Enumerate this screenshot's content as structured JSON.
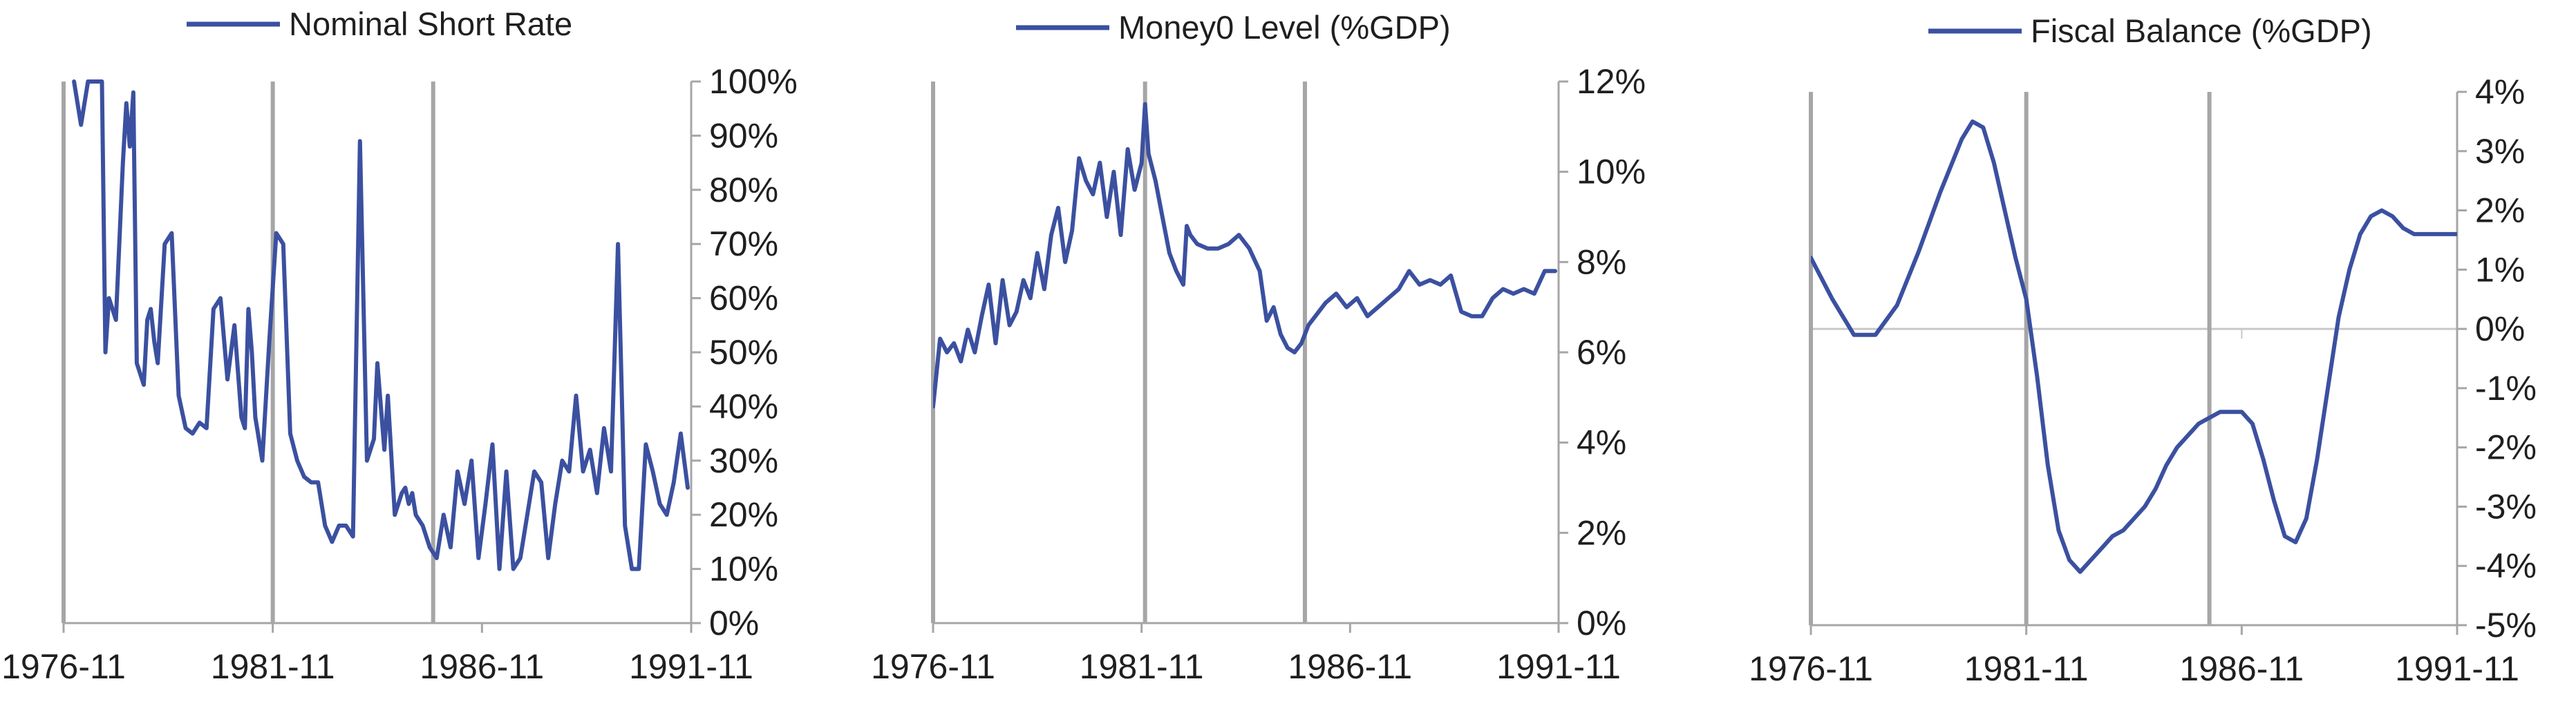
{
  "colors": {
    "series": "#3b50a0",
    "axis": "#a6a6a6",
    "marker": "#a6a6a6",
    "grid": "#c8c8c8"
  },
  "chart_data": [
    {
      "type": "line",
      "xlim": [
        "1976-11",
        "1991-11"
      ],
      "x_tick_labels": [
        "1976-11",
        "1981-11",
        "1986-11",
        "1991-11"
      ],
      "ylim": [
        0,
        100
      ],
      "y_tick_labels": [
        "100%",
        "90%",
        "80%",
        "70%",
        "60%",
        "50%",
        "40%",
        "30%",
        "20%",
        "10%",
        "0%"
      ],
      "y_axis_side": "right",
      "legend": "top",
      "grid": false,
      "markers": [
        "1981-11",
        "1985-09"
      ],
      "series": [
        {
          "name": "Nominal Short Rate",
          "x": [
            "1977-02",
            "1977-04",
            "1977-06",
            "1977-08",
            "1977-10",
            "1977-11",
            "1977-12",
            "1978-02",
            "1978-04",
            "1978-05",
            "1978-06",
            "1978-07",
            "1978-08",
            "1978-10",
            "1978-11",
            "1978-12",
            "1979-01",
            "1979-02",
            "1979-04",
            "1979-06",
            "1979-08",
            "1979-10",
            "1979-12",
            "1980-02",
            "1980-04",
            "1980-06",
            "1980-08",
            "1980-10",
            "1980-12",
            "1981-02",
            "1981-03",
            "1981-04",
            "1981-05",
            "1981-06",
            "1981-07",
            "1981-08",
            "1981-10",
            "1981-12",
            "1982-02",
            "1982-04",
            "1982-06",
            "1982-08",
            "1982-10",
            "1982-12",
            "1983-02",
            "1983-04",
            "1983-06",
            "1983-08",
            "1983-10",
            "1983-12",
            "1984-02",
            "1984-04",
            "1984-05",
            "1984-06",
            "1984-07",
            "1984-08",
            "1984-10",
            "1984-12",
            "1985-01",
            "1985-02",
            "1985-03",
            "1985-04",
            "1985-06",
            "1985-08",
            "1985-10",
            "1985-12",
            "1986-02",
            "1986-04",
            "1986-06",
            "1986-08",
            "1986-10",
            "1986-12",
            "1987-02",
            "1987-04",
            "1987-06",
            "1987-08",
            "1987-10",
            "1987-12",
            "1988-02",
            "1988-04",
            "1988-06",
            "1988-08",
            "1988-10",
            "1988-12",
            "1989-02",
            "1989-04",
            "1989-06",
            "1989-08",
            "1989-10",
            "1989-12",
            "1990-02",
            "1990-03",
            "1990-04",
            "1990-06",
            "1990-08",
            "1990-10",
            "1990-12",
            "1991-02",
            "1991-04",
            "1991-06",
            "1991-08",
            "1991-10"
          ],
          "values": [
            100,
            92,
            100,
            100,
            100,
            50,
            60,
            56,
            85,
            96,
            88,
            98,
            48,
            44,
            56,
            58,
            52,
            48,
            70,
            72,
            42,
            36,
            35,
            37,
            36,
            58,
            60,
            45,
            55,
            38,
            36,
            58,
            50,
            38,
            34,
            30,
            52,
            72,
            70,
            35,
            30,
            27,
            26,
            26,
            18,
            15,
            18,
            18,
            16,
            89,
            30,
            34,
            48,
            40,
            32,
            42,
            20,
            24,
            25,
            22,
            24,
            20,
            18,
            14,
            12,
            20,
            14,
            28,
            22,
            30,
            12,
            22,
            33,
            10,
            28,
            10,
            12,
            20,
            28,
            26,
            12,
            22,
            30,
            28,
            42,
            28,
            32,
            24,
            36,
            28,
            70,
            45,
            18,
            10,
            10,
            33,
            28,
            22,
            20,
            26,
            35,
            25
          ]
        }
      ]
    },
    {
      "type": "line",
      "xlim": [
        "1976-11",
        "1991-11"
      ],
      "x_tick_labels": [
        "1976-11",
        "1981-11",
        "1986-11",
        "1991-11"
      ],
      "ylim": [
        0,
        12
      ],
      "y_tick_labels": [
        "12%",
        "10%",
        "8%",
        "6%",
        "4%",
        "2%",
        "0%"
      ],
      "y_axis_side": "right",
      "legend": "top",
      "grid": false,
      "markers": [
        "1981-12",
        "1985-10"
      ],
      "series": [
        {
          "name": "Money0 Level (%GDP)",
          "x": [
            "1976-11",
            "1977-01",
            "1977-03",
            "1977-05",
            "1977-07",
            "1977-09",
            "1977-11",
            "1978-01",
            "1978-03",
            "1978-05",
            "1978-07",
            "1978-09",
            "1978-11",
            "1979-01",
            "1979-03",
            "1979-05",
            "1979-07",
            "1979-09",
            "1979-11",
            "1980-01",
            "1980-03",
            "1980-05",
            "1980-07",
            "1980-09",
            "1980-11",
            "1981-01",
            "1981-03",
            "1981-05",
            "1981-07",
            "1981-09",
            "1981-11",
            "1981-12",
            "1982-01",
            "1982-03",
            "1982-05",
            "1982-07",
            "1982-09",
            "1982-11",
            "1982-12",
            "1983-01",
            "1983-03",
            "1983-06",
            "1983-09",
            "1983-12",
            "1984-03",
            "1984-06",
            "1984-09",
            "1984-11",
            "1985-01",
            "1985-03",
            "1985-05",
            "1985-07",
            "1985-09",
            "1985-11",
            "1986-01",
            "1986-04",
            "1986-07",
            "1986-10",
            "1987-01",
            "1987-04",
            "1987-07",
            "1987-10",
            "1988-01",
            "1988-04",
            "1988-07",
            "1988-10",
            "1989-01",
            "1989-04",
            "1989-07",
            "1989-10",
            "1990-01",
            "1990-04",
            "1990-07",
            "1990-10",
            "1991-01",
            "1991-04",
            "1991-07",
            "1991-10"
          ],
          "values": [
            4.8,
            6.3,
            6.0,
            6.2,
            5.8,
            6.5,
            6.0,
            6.8,
            7.5,
            6.2,
            7.6,
            6.6,
            6.9,
            7.6,
            7.2,
            8.2,
            7.4,
            8.6,
            9.2,
            8.0,
            8.7,
            10.3,
            9.8,
            9.5,
            10.2,
            9.0,
            10.0,
            8.6,
            10.5,
            9.6,
            10.2,
            11.5,
            10.4,
            9.8,
            9.0,
            8.2,
            7.8,
            7.5,
            8.8,
            8.6,
            8.4,
            8.3,
            8.3,
            8.4,
            8.6,
            8.3,
            7.8,
            6.7,
            7.0,
            6.4,
            6.1,
            6.0,
            6.2,
            6.6,
            6.8,
            7.1,
            7.3,
            7.0,
            7.2,
            6.8,
            7.0,
            7.2,
            7.4,
            7.8,
            7.5,
            7.6,
            7.5,
            7.7,
            6.9,
            6.8,
            6.8,
            7.2,
            7.4,
            7.3,
            7.4,
            7.3,
            7.8,
            7.8
          ]
        }
      ]
    },
    {
      "type": "line",
      "xlim": [
        "1976-11",
        "1991-11"
      ],
      "x_tick_labels": [
        "1976-11",
        "1981-11",
        "1986-11",
        "1991-11"
      ],
      "ylim": [
        -5,
        4
      ],
      "y_tick_labels": [
        "4%",
        "3%",
        "2%",
        "1%",
        "0%",
        "-1%",
        "-2%",
        "-3%",
        "-4%",
        "-5%"
      ],
      "y_axis_side": "right",
      "legend": "top",
      "grid": false,
      "zero_line": true,
      "markers": [
        "1981-11",
        "1986-02"
      ],
      "series": [
        {
          "name": "Fiscal Balance (%GDP)",
          "x": [
            "1976-11",
            "1977-05",
            "1977-11",
            "1978-05",
            "1978-11",
            "1979-05",
            "1979-11",
            "1980-05",
            "1980-08",
            "1980-11",
            "1981-02",
            "1981-05",
            "1981-08",
            "1981-11",
            "1982-02",
            "1982-05",
            "1982-08",
            "1982-11",
            "1983-02",
            "1983-05",
            "1983-08",
            "1983-11",
            "1984-02",
            "1984-05",
            "1984-08",
            "1984-11",
            "1985-02",
            "1985-05",
            "1985-08",
            "1985-11",
            "1986-02",
            "1986-05",
            "1986-08",
            "1986-11",
            "1987-02",
            "1987-05",
            "1987-08",
            "1987-11",
            "1988-02",
            "1988-05",
            "1988-08",
            "1988-11",
            "1989-02",
            "1989-05",
            "1989-08",
            "1989-11",
            "1990-02",
            "1990-05",
            "1990-08",
            "1990-11",
            "1991-02",
            "1991-05",
            "1991-08",
            "1991-11"
          ],
          "values": [
            1.2,
            0.5,
            -0.1,
            -0.1,
            0.4,
            1.3,
            2.3,
            3.2,
            3.5,
            3.4,
            2.8,
            2.0,
            1.2,
            0.5,
            -0.8,
            -2.3,
            -3.4,
            -3.9,
            -4.1,
            -3.9,
            -3.7,
            -3.5,
            -3.4,
            -3.2,
            -3.0,
            -2.7,
            -2.3,
            -2.0,
            -1.8,
            -1.6,
            -1.5,
            -1.4,
            -1.4,
            -1.4,
            -1.6,
            -2.2,
            -2.9,
            -3.5,
            -3.6,
            -3.2,
            -2.2,
            -1.0,
            0.2,
            1.0,
            1.6,
            1.9,
            2.0,
            1.9,
            1.7,
            1.6,
            1.6,
            1.6,
            1.6,
            1.6
          ]
        }
      ]
    }
  ]
}
